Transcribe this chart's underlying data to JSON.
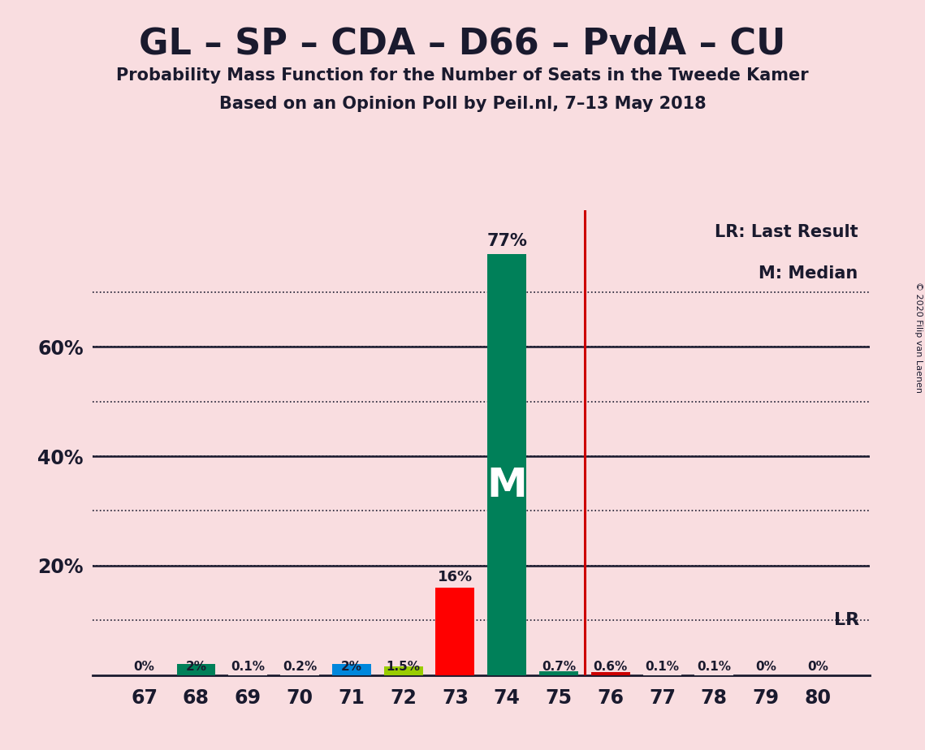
{
  "title": "GL – SP – CDA – D66 – PvdA – CU",
  "subtitle1": "Probability Mass Function for the Number of Seats in the Tweede Kamer",
  "subtitle2": "Based on an Opinion Poll by Peil.nl, 7–13 May 2018",
  "copyright": "© 2020 Filip van Laenen",
  "seats": [
    67,
    68,
    69,
    70,
    71,
    72,
    73,
    74,
    75,
    76,
    77,
    78,
    79,
    80
  ],
  "probabilities": [
    0.0,
    2.0,
    0.1,
    0.2,
    2.0,
    1.5,
    16.0,
    77.0,
    0.7,
    0.6,
    0.1,
    0.1,
    0.0,
    0.0
  ],
  "bar_colors": [
    "#f9dde0",
    "#008059",
    "#f9dde0",
    "#f9dde0",
    "#0087dc",
    "#99cc00",
    "#ff0000",
    "#008059",
    "#008059",
    "#cc0000",
    "#f9dde0",
    "#f9dde0",
    "#f9dde0",
    "#f9dde0"
  ],
  "labels": [
    "0%",
    "2%",
    "0.1%",
    "0.2%",
    "2%",
    "1.5%",
    "16%",
    "77%",
    "0.7%",
    "0.6%",
    "0.1%",
    "0.1%",
    "0%",
    "0%"
  ],
  "lr_line_x": 75.5,
  "median_seat": 74,
  "median_label": "M",
  "lr_label": "LR",
  "legend_lr": "LR: Last Result",
  "legend_m": "M: Median",
  "background_color": "#f9dde0",
  "ylim": [
    0,
    85
  ],
  "yticks": [
    20,
    40,
    60
  ],
  "ytick_labels": [
    "20%",
    "40%",
    "60%"
  ],
  "dotted_lines": [
    10,
    20,
    30,
    40,
    50,
    60,
    70
  ],
  "solid_lines": [
    20,
    40,
    60
  ],
  "lr_line_color": "#cc0000",
  "lr_dotted_y": 10,
  "bar_width": 0.75,
  "xlim": [
    66.0,
    81.0
  ]
}
